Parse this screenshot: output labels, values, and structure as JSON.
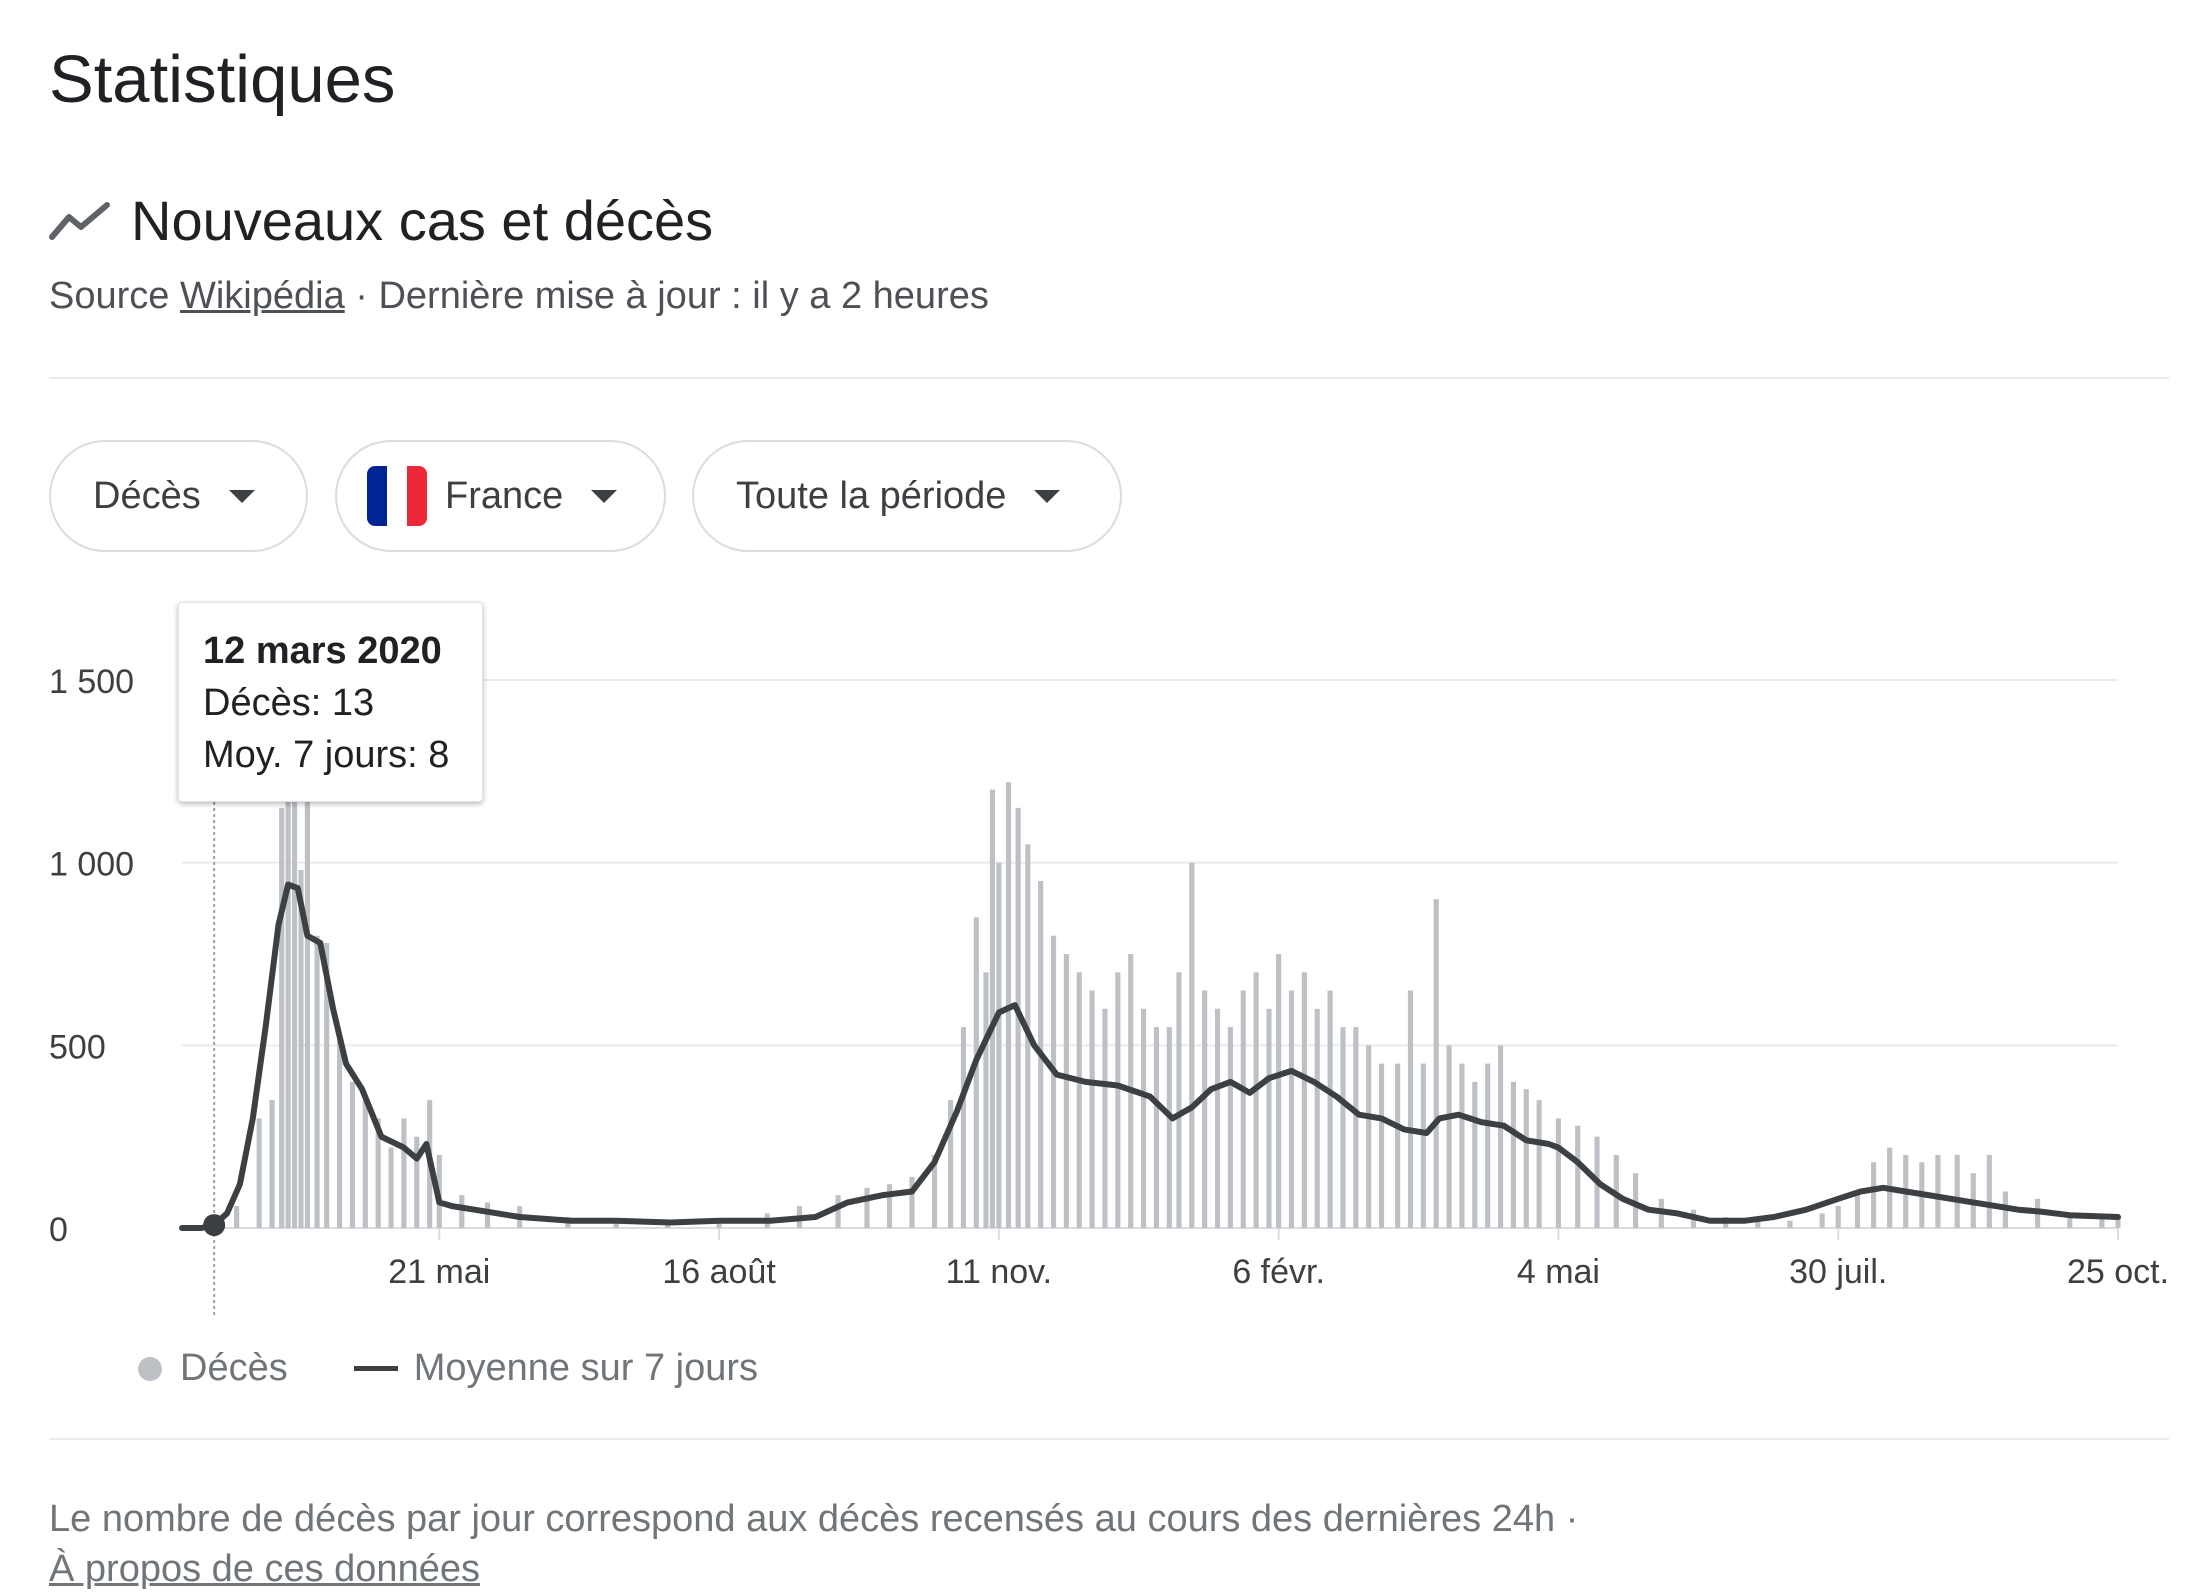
{
  "page": {
    "title": "Statistiques"
  },
  "section": {
    "title": "Nouveaux cas et décès",
    "icon": "trending-icon",
    "source_prefix": "Source",
    "source_link": "Wikipédia",
    "updated": "· Dernière mise à jour : il y a 2 heures"
  },
  "filters": {
    "metric": "Décès",
    "country": "France",
    "period": "Toute la période"
  },
  "colors": {
    "bars": "#bdc1c6",
    "line": "#3c4043",
    "grid": "#ebebeb",
    "flag_blue": "#002395",
    "flag_white": "#ffffff",
    "flag_red": "#ed2939"
  },
  "tooltip": {
    "date": "12 mars 2020",
    "deaths": "Décès: 13",
    "avg": "Moy. 7 jours: 8"
  },
  "legend": {
    "bars": "Décès",
    "line": "Moyenne sur 7 jours"
  },
  "footer": {
    "note": "Le nombre de décès par jour correspond aux décès recensés au cours des dernières 24h  ·",
    "link": "À propos de ces données"
  },
  "chart_data": {
    "type": "bar",
    "ylim": [
      0,
      1500
    ],
    "yticks": [
      0,
      500,
      1000,
      1500
    ],
    "ytick_labels": [
      "0",
      "500",
      "1 000",
      "1 500"
    ],
    "xlim": [
      "2020-03-02",
      "2021-10-25"
    ],
    "xticks": [
      "2020-05-21",
      "2020-08-16",
      "2020-11-11",
      "2021-02-06",
      "2021-05-04",
      "2021-07-30",
      "2021-10-25"
    ],
    "xtick_labels": [
      "21 mai",
      "16 août",
      "11 nov.",
      "6 févr.",
      "4 mai",
      "30 juil.",
      "25 oct."
    ],
    "highlight": {
      "date": "2020-03-12",
      "deaths": 13,
      "avg7": 8
    },
    "grid": true,
    "legend_position": "bottom-left",
    "series": [
      {
        "name": "Décès",
        "type": "bar",
        "x": [
          "2020-03-12",
          "2020-03-19",
          "2020-03-26",
          "2020-03-30",
          "2020-04-02",
          "2020-04-04",
          "2020-04-06",
          "2020-04-08",
          "2020-04-10",
          "2020-04-13",
          "2020-04-16",
          "2020-04-20",
          "2020-04-24",
          "2020-04-28",
          "2020-05-02",
          "2020-05-06",
          "2020-05-10",
          "2020-05-14",
          "2020-05-18",
          "2020-05-21",
          "2020-05-28",
          "2020-06-05",
          "2020-06-15",
          "2020-06-30",
          "2020-07-15",
          "2020-07-31",
          "2020-08-16",
          "2020-08-31",
          "2020-09-10",
          "2020-09-22",
          "2020-10-01",
          "2020-10-08",
          "2020-10-15",
          "2020-10-22",
          "2020-10-27",
          "2020-10-31",
          "2020-11-04",
          "2020-11-07",
          "2020-11-09",
          "2020-11-11",
          "2020-11-14",
          "2020-11-17",
          "2020-11-20",
          "2020-11-24",
          "2020-11-28",
          "2020-12-02",
          "2020-12-06",
          "2020-12-10",
          "2020-12-14",
          "2020-12-18",
          "2020-12-22",
          "2020-12-26",
          "2020-12-30",
          "2021-01-03",
          "2021-01-06",
          "2021-01-10",
          "2021-01-14",
          "2021-01-18",
          "2021-01-22",
          "2021-01-26",
          "2021-01-30",
          "2021-02-03",
          "2021-02-06",
          "2021-02-10",
          "2021-02-14",
          "2021-02-18",
          "2021-02-22",
          "2021-02-26",
          "2021-03-02",
          "2021-03-06",
          "2021-03-10",
          "2021-03-15",
          "2021-03-19",
          "2021-03-23",
          "2021-03-27",
          "2021-03-31",
          "2021-04-04",
          "2021-04-08",
          "2021-04-12",
          "2021-04-16",
          "2021-04-20",
          "2021-04-24",
          "2021-04-28",
          "2021-05-04",
          "2021-05-10",
          "2021-05-16",
          "2021-05-22",
          "2021-05-28",
          "2021-06-05",
          "2021-06-15",
          "2021-06-25",
          "2021-07-05",
          "2021-07-15",
          "2021-07-25",
          "2021-07-30",
          "2021-08-05",
          "2021-08-10",
          "2021-08-15",
          "2021-08-20",
          "2021-08-25",
          "2021-08-30",
          "2021-09-05",
          "2021-09-10",
          "2021-09-15",
          "2021-09-20",
          "2021-09-30",
          "2021-10-10",
          "2021-10-20",
          "2021-10-25"
        ],
        "values": [
          13,
          60,
          300,
          350,
          1150,
          1200,
          1300,
          980,
          1250,
          800,
          780,
          520,
          400,
          350,
          300,
          220,
          300,
          250,
          350,
          200,
          90,
          70,
          60,
          30,
          15,
          15,
          25,
          40,
          60,
          90,
          110,
          120,
          140,
          200,
          350,
          550,
          850,
          700,
          1200,
          1000,
          1220,
          1150,
          1050,
          950,
          800,
          750,
          700,
          650,
          600,
          700,
          750,
          600,
          550,
          550,
          700,
          1000,
          650,
          600,
          550,
          650,
          700,
          600,
          750,
          650,
          700,
          600,
          650,
          550,
          550,
          500,
          450,
          450,
          650,
          450,
          900,
          500,
          450,
          400,
          450,
          500,
          400,
          380,
          350,
          300,
          280,
          250,
          200,
          150,
          80,
          50,
          30,
          25,
          20,
          40,
          60,
          100,
          180,
          220,
          200,
          180,
          200,
          200,
          150,
          200,
          100,
          80,
          40,
          35,
          30
        ]
      },
      {
        "name": "Moyenne sur 7 jours",
        "type": "line",
        "x": [
          "2020-03-02",
          "2020-03-08",
          "2020-03-12",
          "2020-03-16",
          "2020-03-20",
          "2020-03-24",
          "2020-03-28",
          "2020-04-01",
          "2020-04-04",
          "2020-04-07",
          "2020-04-10",
          "2020-04-14",
          "2020-04-18",
          "2020-04-22",
          "2020-04-27",
          "2020-05-03",
          "2020-05-10",
          "2020-05-14",
          "2020-05-17",
          "2020-05-21",
          "2020-05-25",
          "2020-06-01",
          "2020-06-15",
          "2020-07-01",
          "2020-07-15",
          "2020-08-01",
          "2020-08-16",
          "2020-09-01",
          "2020-09-15",
          "2020-09-25",
          "2020-10-06",
          "2020-10-15",
          "2020-10-22",
          "2020-10-29",
          "2020-11-04",
          "2020-11-11",
          "2020-11-16",
          "2020-11-22",
          "2020-11-29",
          "2020-12-08",
          "2020-12-18",
          "2020-12-28",
          "2021-01-04",
          "2021-01-10",
          "2021-01-16",
          "2021-01-22",
          "2021-01-28",
          "2021-02-03",
          "2021-02-10",
          "2021-02-17",
          "2021-02-24",
          "2021-03-03",
          "2021-03-10",
          "2021-03-17",
          "2021-03-24",
          "2021-03-28",
          "2021-04-03",
          "2021-04-10",
          "2021-04-17",
          "2021-04-24",
          "2021-05-01",
          "2021-05-04",
          "2021-05-10",
          "2021-05-17",
          "2021-05-24",
          "2021-06-01",
          "2021-06-10",
          "2021-06-20",
          "2021-07-01",
          "2021-07-10",
          "2021-07-20",
          "2021-07-30",
          "2021-08-06",
          "2021-08-13",
          "2021-08-20",
          "2021-08-27",
          "2021-09-03",
          "2021-09-10",
          "2021-09-17",
          "2021-09-24",
          "2021-10-01",
          "2021-10-10",
          "2021-10-25"
        ],
        "values": [
          0,
          0,
          8,
          40,
          120,
          300,
          550,
          830,
          940,
          930,
          800,
          780,
          600,
          450,
          380,
          250,
          220,
          190,
          230,
          70,
          60,
          50,
          30,
          20,
          20,
          15,
          20,
          20,
          30,
          70,
          90,
          100,
          180,
          320,
          460,
          590,
          610,
          500,
          420,
          400,
          390,
          360,
          300,
          330,
          380,
          400,
          370,
          410,
          430,
          400,
          360,
          310,
          300,
          270,
          260,
          300,
          310,
          290,
          280,
          240,
          230,
          220,
          180,
          120,
          80,
          50,
          40,
          20,
          20,
          30,
          50,
          80,
          100,
          110,
          100,
          90,
          80,
          70,
          60,
          50,
          45,
          35,
          30
        ]
      }
    ]
  }
}
